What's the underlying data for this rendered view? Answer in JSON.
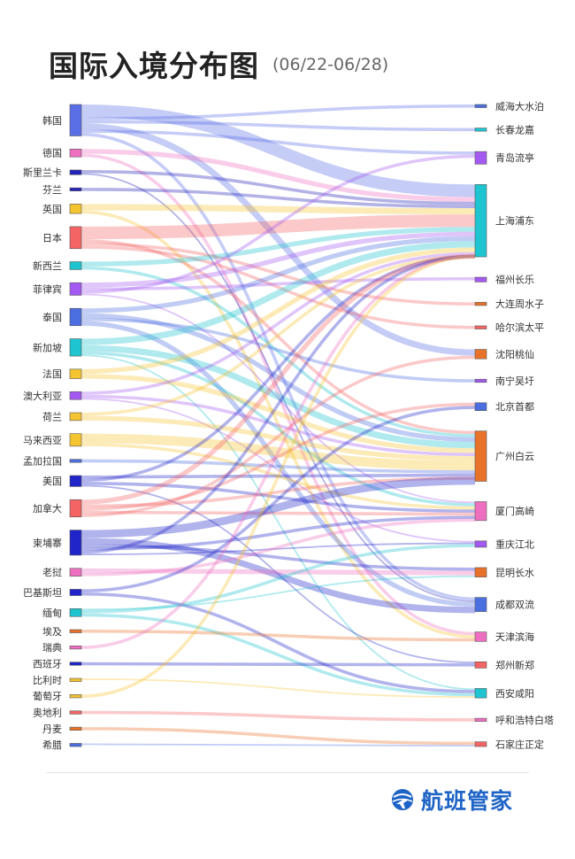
{
  "header": {
    "title": "国际入境分布图",
    "subtitle": "(06/22-06/28)"
  },
  "brand": {
    "name": "航班管家",
    "icon": "globe-plane-icon",
    "color": "#1e63c6"
  },
  "chart_data": {
    "type": "sankey",
    "sources": [
      {
        "name": "韩国",
        "color": "#5a6ee6",
        "weight": 10
      },
      {
        "name": "德国",
        "color": "#ee6fbf",
        "weight": 2.5
      },
      {
        "name": "斯里兰卡",
        "color": "#2323b8",
        "weight": 1.5
      },
      {
        "name": "芬兰",
        "color": "#2323b8",
        "weight": 1
      },
      {
        "name": "英国",
        "color": "#f5c431",
        "weight": 3
      },
      {
        "name": "日本",
        "color": "#f46464",
        "weight": 7
      },
      {
        "name": "新西兰",
        "color": "#1ec4cf",
        "weight": 2.5
      },
      {
        "name": "菲律宾",
        "color": "#a45af0",
        "weight": 4
      },
      {
        "name": "泰国",
        "color": "#4b6ee0",
        "weight": 5.5
      },
      {
        "name": "新加坡",
        "color": "#1ec4cf",
        "weight": 5.5
      },
      {
        "name": "法国",
        "color": "#f5c431",
        "weight": 3
      },
      {
        "name": "澳大利亚",
        "color": "#a45af0",
        "weight": 2.5
      },
      {
        "name": "荷兰",
        "color": "#f5c431",
        "weight": 2.5
      },
      {
        "name": "马来西亚",
        "color": "#f5c431",
        "weight": 4
      },
      {
        "name": "孟加拉国",
        "color": "#4b6ee0",
        "weight": 1
      },
      {
        "name": "美国",
        "color": "#1f25c8",
        "weight": 3.5
      },
      {
        "name": "加拿大",
        "color": "#f46464",
        "weight": 5.5
      },
      {
        "name": "柬埔寨",
        "color": "#1f25c8",
        "weight": 8
      },
      {
        "name": "老挝",
        "color": "#ee6fbf",
        "weight": 2.5
      },
      {
        "name": "巴基斯坦",
        "color": "#1f25c8",
        "weight": 2
      },
      {
        "name": "缅甸",
        "color": "#1ec4cf",
        "weight": 2.5
      },
      {
        "name": "埃及",
        "color": "#e8722a",
        "weight": 1
      },
      {
        "name": "瑞典",
        "color": "#ee6fbf",
        "weight": 1
      },
      {
        "name": "西班牙",
        "color": "#1f25c8",
        "weight": 1
      },
      {
        "name": "比利时",
        "color": "#f5c431",
        "weight": 1
      },
      {
        "name": "葡萄牙",
        "color": "#f5c431",
        "weight": 1
      },
      {
        "name": "奥地利",
        "color": "#f46464",
        "weight": 1
      },
      {
        "name": "丹麦",
        "color": "#e8722a",
        "weight": 1
      },
      {
        "name": "希腊",
        "color": "#4b6ee0",
        "weight": 1
      }
    ],
    "targets": [
      {
        "name": "威海大水泊",
        "color": "#4b6ee0",
        "weight": 1
      },
      {
        "name": "长春龙嘉",
        "color": "#1ec4cf",
        "weight": 1
      },
      {
        "name": "青岛流亭",
        "color": "#a45af0",
        "weight": 4
      },
      {
        "name": "上海浦东",
        "color": "#1ec4cf",
        "weight": 23
      },
      {
        "name": "福州长乐",
        "color": "#a45af0",
        "weight": 1.5
      },
      {
        "name": "大连周水子",
        "color": "#e8722a",
        "weight": 1
      },
      {
        "name": "哈尔滨太平",
        "color": "#f46464",
        "weight": 1
      },
      {
        "name": "沈阳桃仙",
        "color": "#e8722a",
        "weight": 3
      },
      {
        "name": "南宁吴圩",
        "color": "#a45af0",
        "weight": 1
      },
      {
        "name": "北京首都",
        "color": "#4b6ee0",
        "weight": 2.5
      },
      {
        "name": "广州白云",
        "color": "#e8722a",
        "weight": 16
      },
      {
        "name": "厦门高崎",
        "color": "#ee6fbf",
        "weight": 6
      },
      {
        "name": "重庆江北",
        "color": "#a45af0",
        "weight": 2
      },
      {
        "name": "昆明长水",
        "color": "#e8722a",
        "weight": 3
      },
      {
        "name": "成都双流",
        "color": "#4b6ee0",
        "weight": 4.5
      },
      {
        "name": "天津滨海",
        "color": "#ee6fbf",
        "weight": 3
      },
      {
        "name": "郑州新郑",
        "color": "#f46464",
        "weight": 2
      },
      {
        "name": "西安咸阳",
        "color": "#1ec4cf",
        "weight": 3
      },
      {
        "name": "呼和浩特白塔",
        "color": "#ee6fbf",
        "weight": 1
      },
      {
        "name": "石家庄正定",
        "color": "#f46464",
        "weight": 1.5
      }
    ],
    "links": [
      {
        "source": "韩国",
        "target": "上海浦东",
        "value": 4
      },
      {
        "source": "韩国",
        "target": "威海大水泊",
        "value": 1
      },
      {
        "source": "韩国",
        "target": "长春龙嘉",
        "value": 1
      },
      {
        "source": "韩国",
        "target": "沈阳桃仙",
        "value": 2
      },
      {
        "source": "韩国",
        "target": "青岛流亭",
        "value": 1
      },
      {
        "source": "韩国",
        "target": "成都双流",
        "value": 1
      },
      {
        "source": "德国",
        "target": "上海浦东",
        "value": 1.5
      },
      {
        "source": "德国",
        "target": "天津滨海",
        "value": 1
      },
      {
        "source": "斯里兰卡",
        "target": "上海浦东",
        "value": 1
      },
      {
        "source": "斯里兰卡",
        "target": "成都双流",
        "value": 0.5
      },
      {
        "source": "芬兰",
        "target": "上海浦东",
        "value": 1
      },
      {
        "source": "英国",
        "target": "上海浦东",
        "value": 2
      },
      {
        "source": "英国",
        "target": "天津滨海",
        "value": 1
      },
      {
        "source": "日本",
        "target": "上海浦东",
        "value": 4
      },
      {
        "source": "日本",
        "target": "广州白云",
        "value": 1
      },
      {
        "source": "日本",
        "target": "大连周水子",
        "value": 1
      },
      {
        "source": "日本",
        "target": "哈尔滨太平",
        "value": 1
      },
      {
        "source": "新西兰",
        "target": "上海浦东",
        "value": 1.5
      },
      {
        "source": "新西兰",
        "target": "广州白云",
        "value": 1
      },
      {
        "source": "菲律宾",
        "target": "上海浦东",
        "value": 1.5
      },
      {
        "source": "菲律宾",
        "target": "福州长乐",
        "value": 1
      },
      {
        "source": "菲律宾",
        "target": "青岛流亭",
        "value": 1
      },
      {
        "source": "菲律宾",
        "target": "厦门高崎",
        "value": 0.5
      },
      {
        "source": "泰国",
        "target": "上海浦东",
        "value": 1.5
      },
      {
        "source": "泰国",
        "target": "广州白云",
        "value": 1.5
      },
      {
        "source": "泰国",
        "target": "南宁吴圩",
        "value": 1
      },
      {
        "source": "泰国",
        "target": "成都双流",
        "value": 1.5
      },
      {
        "source": "新加坡",
        "target": "上海浦东",
        "value": 2
      },
      {
        "source": "新加坡",
        "target": "广州白云",
        "value": 2
      },
      {
        "source": "新加坡",
        "target": "厦门高崎",
        "value": 1
      },
      {
        "source": "新加坡",
        "target": "西安咸阳",
        "value": 0.5
      },
      {
        "source": "法国",
        "target": "上海浦东",
        "value": 1.5
      },
      {
        "source": "法国",
        "target": "广州白云",
        "value": 1.5
      },
      {
        "source": "澳大利亚",
        "target": "上海浦东",
        "value": 1
      },
      {
        "source": "澳大利亚",
        "target": "广州白云",
        "value": 1
      },
      {
        "source": "澳大利亚",
        "target": "重庆江北",
        "value": 0.5
      },
      {
        "source": "荷兰",
        "target": "上海浦东",
        "value": 1
      },
      {
        "source": "荷兰",
        "target": "广州白云",
        "value": 1.5
      },
      {
        "source": "马来西亚",
        "target": "广州白云",
        "value": 3
      },
      {
        "source": "马来西亚",
        "target": "厦门高崎",
        "value": 1
      },
      {
        "source": "孟加拉国",
        "target": "广州白云",
        "value": 1
      },
      {
        "source": "美国",
        "target": "广州白云",
        "value": 1
      },
      {
        "source": "美国",
        "target": "上海浦东",
        "value": 1
      },
      {
        "source": "美国",
        "target": "厦门高崎",
        "value": 1
      },
      {
        "source": "美国",
        "target": "郑州新郑",
        "value": 0.5
      },
      {
        "source": "加拿大",
        "target": "上海浦东",
        "value": 1.5
      },
      {
        "source": "加拿大",
        "target": "广州白云",
        "value": 1
      },
      {
        "source": "加拿大",
        "target": "北京首都",
        "value": 1
      },
      {
        "source": "加拿大",
        "target": "厦门高崎",
        "value": 1
      },
      {
        "source": "加拿大",
        "target": "沈阳桃仙",
        "value": 1
      },
      {
        "source": "柬埔寨",
        "target": "广州白云",
        "value": 2.5
      },
      {
        "source": "柬埔寨",
        "target": "成都双流",
        "value": 2
      },
      {
        "source": "柬埔寨",
        "target": "昆明长水",
        "value": 1
      },
      {
        "source": "柬埔寨",
        "target": "厦门高崎",
        "value": 1
      },
      {
        "source": "柬埔寨",
        "target": "上海浦东",
        "value": 1
      },
      {
        "source": "柬埔寨",
        "target": "重庆江北",
        "value": 0.5
      },
      {
        "source": "老挝",
        "target": "昆明长水",
        "value": 1.5
      },
      {
        "source": "老挝",
        "target": "厦门高崎",
        "value": 1
      },
      {
        "source": "巴基斯坦",
        "target": "北京首都",
        "value": 1
      },
      {
        "source": "巴基斯坦",
        "target": "西安咸阳",
        "value": 1
      },
      {
        "source": "缅甸",
        "target": "昆明长水",
        "value": 0.5
      },
      {
        "source": "缅甸",
        "target": "重庆江北",
        "value": 1
      },
      {
        "source": "缅甸",
        "target": "西安咸阳",
        "value": 1
      },
      {
        "source": "埃及",
        "target": "天津滨海",
        "value": 1
      },
      {
        "source": "瑞典",
        "target": "上海浦东",
        "value": 1
      },
      {
        "source": "西班牙",
        "target": "郑州新郑",
        "value": 1
      },
      {
        "source": "比利时",
        "target": "西安咸阳",
        "value": 0.5
      },
      {
        "source": "葡萄牙",
        "target": "上海浦东",
        "value": 1
      },
      {
        "source": "奥地利",
        "target": "呼和浩特白塔",
        "value": 1
      },
      {
        "source": "丹麦",
        "target": "石家庄正定",
        "value": 1
      },
      {
        "source": "希腊",
        "target": "石家庄正定",
        "value": 0.5
      }
    ]
  }
}
